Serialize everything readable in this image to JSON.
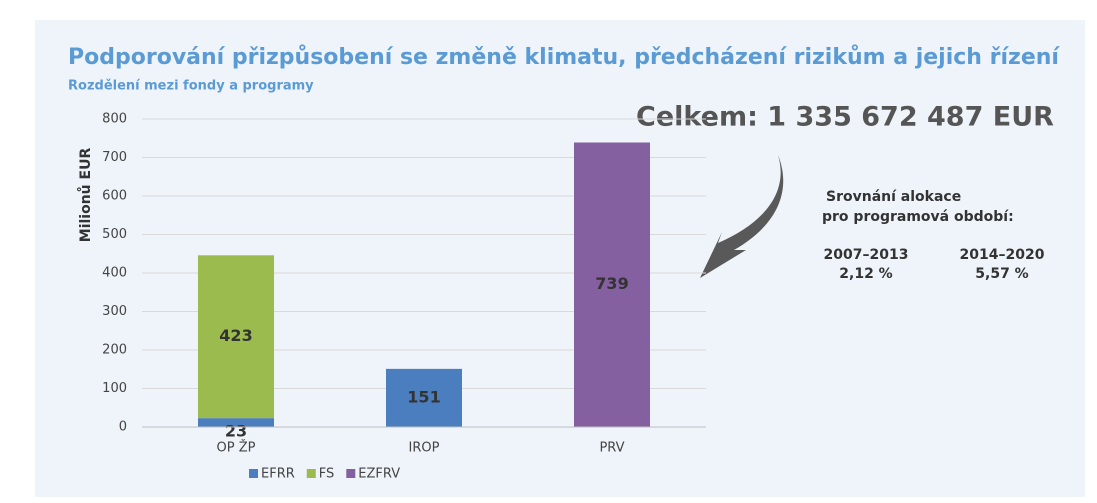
{
  "chart_data": {
    "type": "bar",
    "stacked": true,
    "title": "Podporování přizpůsobení se změně klimatu, předcházení rizikům a jejich řízení",
    "subtitle": "Rozdělení mezi fondy a programy",
    "y_label": "Milionů EUR",
    "categories": [
      "OP ŽP",
      "IROP",
      "PRV"
    ],
    "series": [
      {
        "name": "EFRR",
        "color": "#4a7ebf",
        "values": [
          23,
          151,
          null
        ]
      },
      {
        "name": "FS",
        "color": "#9bbb4f",
        "values": [
          423,
          null,
          null
        ]
      },
      {
        "name": "EZFRV",
        "color": "#8460a0",
        "values": [
          null,
          null,
          739
        ]
      }
    ],
    "ylim": [
      0,
      800
    ],
    "yticks": [
      0,
      100,
      200,
      300,
      400,
      500,
      600,
      700,
      800
    ],
    "grid": true,
    "legend": "bottom",
    "annotations": {
      "total": "Celkem: 1 335 672 487 EUR",
      "compare_title_1": "Srovnání alokace",
      "compare_title_2": "pro programová období:",
      "period_1": "2007–2013",
      "share_1": "2,12 %",
      "period_2": "2014–2020",
      "share_2": "5,57 %"
    }
  }
}
